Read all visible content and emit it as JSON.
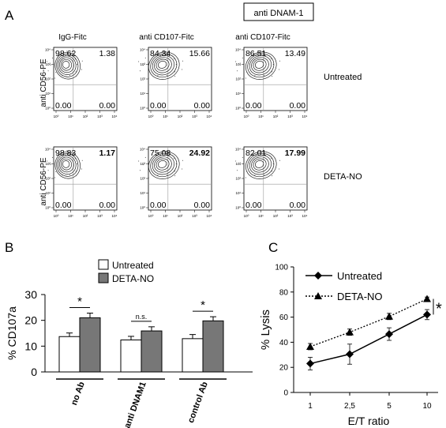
{
  "panel_labels": {
    "a": "A",
    "b": "B",
    "c": "C"
  },
  "panel_a": {
    "treatment_box": "anti DNAM-1",
    "column_titles": [
      "IgG-Fitc",
      "anti CD107-Fitc",
      "anti CD107-Fitc"
    ],
    "y_axis_label": "anti CD56-PE",
    "rows": [
      {
        "label": "Untreated",
        "plots": [
          {
            "q1": "98.62",
            "q2": "1.38",
            "q3": "0.00",
            "q4": "0.00",
            "q2_bold": false
          },
          {
            "q1": "84.34",
            "q2": "15.66",
            "q3": "0.00",
            "q4": "0.00",
            "q2_bold": false
          },
          {
            "q1": "86.51",
            "q2": "13.49",
            "q3": "0.00",
            "q4": "0.00",
            "q2_bold": false
          }
        ]
      },
      {
        "label": "DETA-NO",
        "plots": [
          {
            "q1": "98.83",
            "q2": "1.17",
            "q3": "0.00",
            "q4": "0.00",
            "q2_bold": true
          },
          {
            "q1": "75.08",
            "q2": "24.92",
            "q3": "0.00",
            "q4": "0.00",
            "q2_bold": true
          },
          {
            "q1": "82.01",
            "q2": "17.99",
            "q3": "0.00",
            "q4": "0.00",
            "q2_bold": true
          }
        ]
      }
    ],
    "tick_labels": [
      "10⁰",
      "10¹",
      "10²",
      "10³",
      "10⁴"
    ]
  },
  "chart_data": [
    {
      "type": "bar",
      "categories": [
        "no Ab",
        "anti DNAM1",
        "control Ab"
      ],
      "ylabel": "% CD107a",
      "ylim": [
        0,
        30
      ],
      "yticks": [
        "0",
        "10",
        "20",
        "30"
      ],
      "legend_position": "top",
      "series": [
        {
          "name": "Untreated",
          "values": [
            13.7,
            12.4,
            12.9
          ],
          "errors": [
            1.4,
            1.4,
            1.6
          ],
          "color": "#ffffff"
        },
        {
          "name": "DETA-NO",
          "values": [
            21.0,
            15.9,
            19.8
          ],
          "errors": [
            1.8,
            1.6,
            1.6
          ],
          "color": "#777777"
        }
      ],
      "significance": [
        "*",
        "n.s.",
        "*"
      ]
    },
    {
      "type": "line",
      "x": [
        "1",
        "2,5",
        "5",
        "10"
      ],
      "xlabel": "E/T ratio",
      "ylabel": "% Lysis",
      "ylim": [
        0,
        100
      ],
      "yticks": [
        "0",
        "20",
        "40",
        "60",
        "80",
        "100"
      ],
      "legend_position": "top-left",
      "series": [
        {
          "name": "Untreated",
          "values": [
            23,
            30.5,
            46.5,
            62
          ],
          "errors": [
            5,
            8,
            5,
            4
          ],
          "marker": "diamond",
          "line": "solid"
        },
        {
          "name": "DETA-NO",
          "values": [
            36.5,
            48,
            60.5,
            74.5
          ],
          "errors": [
            2.5,
            2.5,
            2.5,
            1.5
          ],
          "marker": "triangle",
          "line": "dotted"
        }
      ],
      "significance": "*"
    }
  ]
}
